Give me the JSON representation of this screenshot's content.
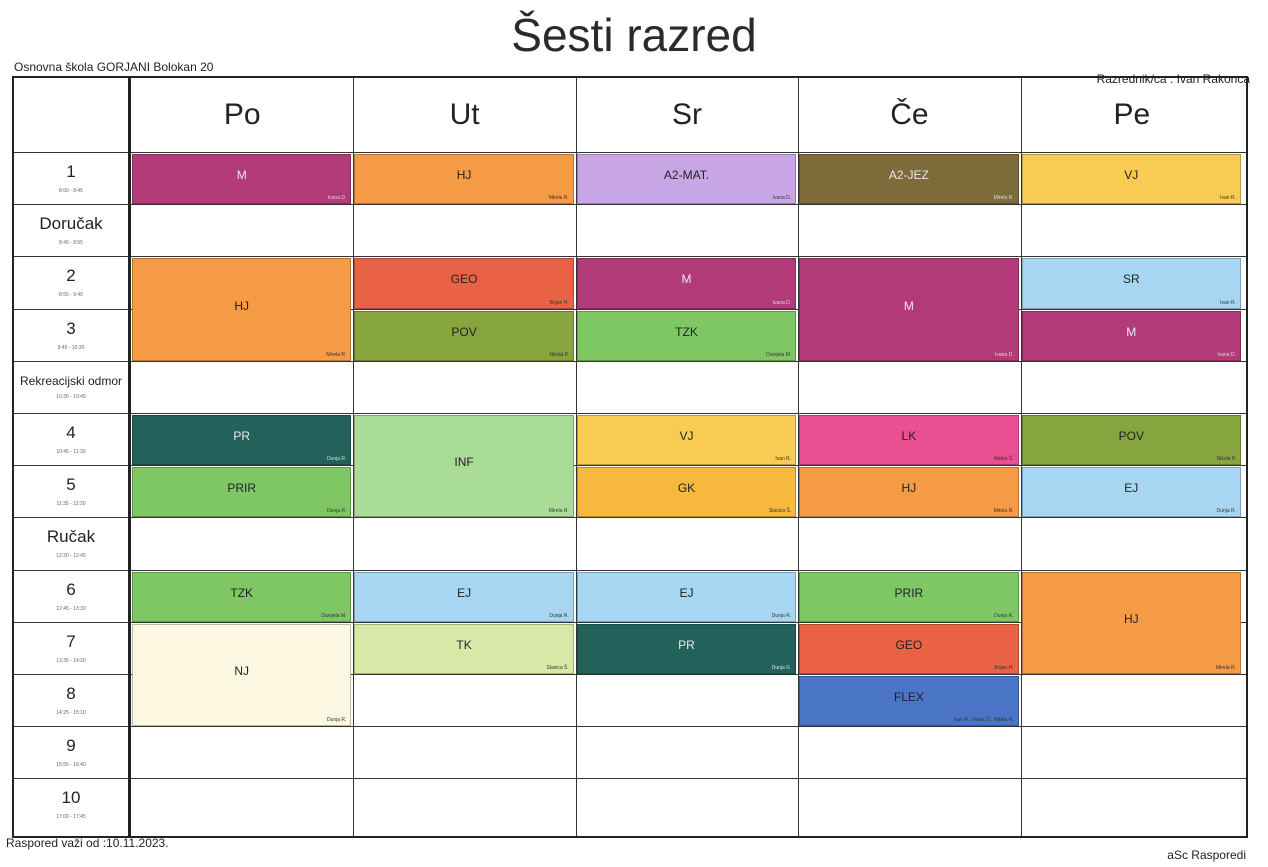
{
  "header": {
    "title": "Šesti razred",
    "school": "Osnovna škola GORJANI  Bolokan 20",
    "teacher": "Razrednik/ca : Ivan Rakonca"
  },
  "footer": {
    "valid_from": "Raspored važi od :10.11.2023.",
    "brand": "aSc Rasporedi"
  },
  "days": [
    "Po",
    "Ut",
    "Sr",
    "Če",
    "Pe"
  ],
  "rows": [
    {
      "label": "1",
      "time": "8:00 - 8:45"
    },
    {
      "label": "Doručak",
      "time": "8:45 - 8:55",
      "break": true
    },
    {
      "label": "2",
      "time": "8:55 - 9:40"
    },
    {
      "label": "3",
      "time": "9:45 - 10:30"
    },
    {
      "label": "Rekreacijski odmor",
      "time": "10:30 - 10:45",
      "break": true,
      "small": true
    },
    {
      "label": "4",
      "time": "10:45 - 11:30"
    },
    {
      "label": "5",
      "time": "11:35 - 12:20"
    },
    {
      "label": "Ručak",
      "time": "12:20 - 12:45",
      "break": true
    },
    {
      "label": "6",
      "time": "12:45 - 13:30"
    },
    {
      "label": "7",
      "time": "13:35 - 14:20"
    },
    {
      "label": "8",
      "time": "14:25 - 15:10"
    },
    {
      "label": "9",
      "time": "15:55 - 16:40"
    },
    {
      "label": "10",
      "time": "17:00 - 17:45"
    }
  ],
  "lessons": [
    {
      "day": 0,
      "row": 0,
      "span": 1,
      "subject": "M",
      "teacher": "Ivana D.",
      "color": "#b33a78"
    },
    {
      "day": 1,
      "row": 0,
      "span": 1,
      "subject": "HJ",
      "teacher": "Mirela R.",
      "color": "#f59b45"
    },
    {
      "day": 2,
      "row": 0,
      "span": 1,
      "subject": "A2-MAT.",
      "teacher": "Ivana D.",
      "color": "#c8a6e6"
    },
    {
      "day": 3,
      "row": 0,
      "span": 1,
      "subject": "A2-JEZ",
      "teacher": "Mirela R.",
      "color": "#7d6b3a"
    },
    {
      "day": 4,
      "row": 0,
      "span": 1,
      "subject": "VJ",
      "teacher": "Ivan R.",
      "color": "#f8cc52"
    },
    {
      "day": 0,
      "row": 2,
      "span": 2,
      "subject": "HJ",
      "teacher": "Mirela R.",
      "color": "#f59b45"
    },
    {
      "day": 1,
      "row": 2,
      "span": 1,
      "subject": "GEO",
      "teacher": "Bojan H.",
      "color": "#ea6245"
    },
    {
      "day": 1,
      "row": 3,
      "span": 1,
      "subject": "POV",
      "teacher": "Nikola P.",
      "color": "#86a53f"
    },
    {
      "day": 2,
      "row": 2,
      "span": 1,
      "subject": "M",
      "teacher": "Ivana D.",
      "color": "#b33a78"
    },
    {
      "day": 2,
      "row": 3,
      "span": 1,
      "subject": "TZK",
      "teacher": "Danijela M.",
      "color": "#7fc765"
    },
    {
      "day": 3,
      "row": 2,
      "span": 2,
      "subject": "M",
      "teacher": "Ivana D.",
      "color": "#b33a78"
    },
    {
      "day": 4,
      "row": 2,
      "span": 1,
      "subject": "SR",
      "teacher": "Ivan R.",
      "color": "#a7d6f2"
    },
    {
      "day": 4,
      "row": 3,
      "span": 1,
      "subject": "M",
      "teacher": "Ivana D.",
      "color": "#b33a78"
    },
    {
      "day": 0,
      "row": 5,
      "span": 1,
      "subject": "PR",
      "teacher": "Dunja R.",
      "color": "#22625a"
    },
    {
      "day": 0,
      "row": 6,
      "span": 1,
      "subject": "PRIR",
      "teacher": "Dunja R.",
      "color": "#7fc765"
    },
    {
      "day": 1,
      "row": 5,
      "span": 2,
      "subject": "INF",
      "teacher": "Mirela R.",
      "color": "#a9dc96"
    },
    {
      "day": 2,
      "row": 5,
      "span": 1,
      "subject": "VJ",
      "teacher": "Ivan R.",
      "color": "#f8cc52"
    },
    {
      "day": 2,
      "row": 6,
      "span": 1,
      "subject": "GK",
      "teacher": "Slavica Š.",
      "color": "#f7b83e"
    },
    {
      "day": 3,
      "row": 5,
      "span": 1,
      "subject": "LK",
      "teacher": "Matea Š.",
      "color": "#ea4f91"
    },
    {
      "day": 3,
      "row": 6,
      "span": 1,
      "subject": "HJ",
      "teacher": "Mirela R.",
      "color": "#f59b45"
    },
    {
      "day": 4,
      "row": 5,
      "span": 1,
      "subject": "POV",
      "teacher": "Nikola P.",
      "color": "#86a53f"
    },
    {
      "day": 4,
      "row": 6,
      "span": 1,
      "subject": "EJ",
      "teacher": "Dunja R.",
      "color": "#a7d6f2"
    },
    {
      "day": 0,
      "row": 8,
      "span": 1,
      "subject": "TZK",
      "teacher": "Danijela M.",
      "color": "#7fc765"
    },
    {
      "day": 0,
      "row": 9,
      "span": 2,
      "subject": "NJ",
      "teacher": "Dunja R.",
      "color": "#fbf7e1"
    },
    {
      "day": 1,
      "row": 8,
      "span": 1,
      "subject": "EJ",
      "teacher": "Dunja R.",
      "color": "#a7d6f2"
    },
    {
      "day": 1,
      "row": 9,
      "span": 1,
      "subject": "TK",
      "teacher": "Slavica Š.",
      "color": "#d9e8a6"
    },
    {
      "day": 2,
      "row": 8,
      "span": 1,
      "subject": "EJ",
      "teacher": "Dunja R.",
      "color": "#a7d6f2"
    },
    {
      "day": 2,
      "row": 9,
      "span": 1,
      "subject": "PR",
      "teacher": "Dunja R.",
      "color": "#22625a"
    },
    {
      "day": 3,
      "row": 8,
      "span": 1,
      "subject": "PRIR",
      "teacher": "Dunja R.",
      "color": "#7fc765"
    },
    {
      "day": 3,
      "row": 9,
      "span": 1,
      "subject": "GEO",
      "teacher": "Bojan H.",
      "color": "#ea6245"
    },
    {
      "day": 3,
      "row": 10,
      "span": 1,
      "subject": "FLEX",
      "teacher": "Ivan R., Ivana D., Mirela R.",
      "color": "#4a74c6"
    },
    {
      "day": 4,
      "row": 8,
      "span": 2,
      "subject": "HJ",
      "teacher": "Mirela R.",
      "color": "#f59b45"
    }
  ]
}
